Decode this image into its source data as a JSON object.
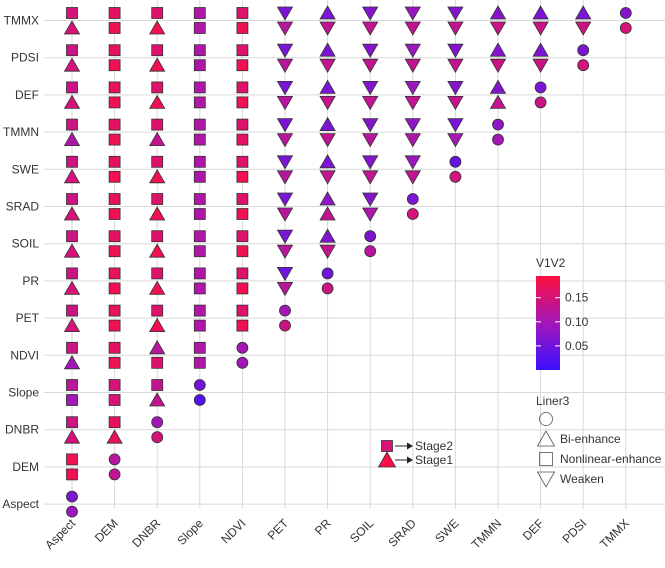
{
  "chart_data": {
    "type": "scatter",
    "x_categories": [
      "Aspect",
      "DEM",
      "DNBR",
      "Slope",
      "NDVI",
      "PET",
      "PR",
      "SOIL",
      "SRAD",
      "SWE",
      "TMMN",
      "DEF",
      "PDSI",
      "TMMX"
    ],
    "y_categories": [
      "TMMX",
      "PDSI",
      "DEF",
      "TMMN",
      "SWE",
      "SRAD",
      "SOIL",
      "PR",
      "PET",
      "NDVI",
      "Slope",
      "DNBR",
      "DEM",
      "Aspect"
    ],
    "stage_labels": [
      "Stage2",
      "Stage1"
    ],
    "cells": [
      {
        "x": "Aspect",
        "y": "TMMX",
        "s2": "square",
        "v2": 0.15,
        "s1": "triangle_up",
        "v1": 0.15
      },
      {
        "x": "DEM",
        "y": "TMMX",
        "s2": "square",
        "v2": 0.17,
        "s1": "square",
        "v1": 0.18
      },
      {
        "x": "DNBR",
        "y": "TMMX",
        "s2": "square",
        "v2": 0.16,
        "s1": "triangle_up",
        "v1": 0.18
      },
      {
        "x": "Slope",
        "y": "TMMX",
        "s2": "square",
        "v2": 0.11,
        "s1": "square",
        "v1": 0.11
      },
      {
        "x": "NDVI",
        "y": "TMMX",
        "s2": "square",
        "v2": 0.16,
        "s1": "square",
        "v1": 0.18
      },
      {
        "x": "PET",
        "y": "TMMX",
        "s2": "triangle_down",
        "v2": 0.06,
        "s1": "triangle_down",
        "v1": 0.12
      },
      {
        "x": "PR",
        "y": "TMMX",
        "s2": "triangle_up",
        "v2": 0.06,
        "s1": "triangle_down",
        "v1": 0.13
      },
      {
        "x": "SOIL",
        "y": "TMMX",
        "s2": "triangle_down",
        "v2": 0.07,
        "s1": "triangle_down",
        "v1": 0.13
      },
      {
        "x": "SRAD",
        "y": "TMMX",
        "s2": "triangle_down",
        "v2": 0.09,
        "s1": "triangle_down",
        "v1": 0.13
      },
      {
        "x": "SWE",
        "y": "TMMX",
        "s2": "triangle_down",
        "v2": 0.07,
        "s1": "triangle_down",
        "v1": 0.13
      },
      {
        "x": "TMMN",
        "y": "TMMX",
        "s2": "triangle_up",
        "v2": 0.07,
        "s1": "triangle_down",
        "v1": 0.14
      },
      {
        "x": "DEF",
        "y": "TMMX",
        "s2": "triangle_up",
        "v2": 0.06,
        "s1": "triangle_down",
        "v1": 0.14
      },
      {
        "x": "PDSI",
        "y": "TMMX",
        "s2": "triangle_up",
        "v2": 0.06,
        "s1": "triangle_down",
        "v1": 0.14
      },
      {
        "x": "TMMX",
        "y": "TMMX",
        "s2": "circle",
        "v2": 0.07,
        "s1": "circle",
        "v1": 0.15
      },
      {
        "x": "Aspect",
        "y": "PDSI",
        "s2": "square",
        "v2": 0.14,
        "s1": "triangle_up",
        "v1": 0.15
      },
      {
        "x": "DEM",
        "y": "PDSI",
        "s2": "square",
        "v2": 0.17,
        "s1": "square",
        "v1": 0.18
      },
      {
        "x": "DNBR",
        "y": "PDSI",
        "s2": "square",
        "v2": 0.16,
        "s1": "triangle_up",
        "v1": 0.18
      },
      {
        "x": "Slope",
        "y": "PDSI",
        "s2": "square",
        "v2": 0.11,
        "s1": "square",
        "v1": 0.11
      },
      {
        "x": "NDVI",
        "y": "PDSI",
        "s2": "square",
        "v2": 0.16,
        "s1": "square",
        "v1": 0.18
      },
      {
        "x": "PET",
        "y": "PDSI",
        "s2": "triangle_down",
        "v2": 0.06,
        "s1": "triangle_down",
        "v1": 0.12
      },
      {
        "x": "PR",
        "y": "PDSI",
        "s2": "triangle_up",
        "v2": 0.06,
        "s1": "triangle_down",
        "v1": 0.13
      },
      {
        "x": "SOIL",
        "y": "PDSI",
        "s2": "triangle_down",
        "v2": 0.07,
        "s1": "triangle_down",
        "v1": 0.13
      },
      {
        "x": "SRAD",
        "y": "PDSI",
        "s2": "triangle_down",
        "v2": 0.09,
        "s1": "triangle_down",
        "v1": 0.13
      },
      {
        "x": "SWE",
        "y": "PDSI",
        "s2": "triangle_down",
        "v2": 0.07,
        "s1": "triangle_down",
        "v1": 0.13
      },
      {
        "x": "TMMN",
        "y": "PDSI",
        "s2": "triangle_up",
        "v2": 0.07,
        "s1": "triangle_down",
        "v1": 0.14
      },
      {
        "x": "DEF",
        "y": "PDSI",
        "s2": "triangle_up",
        "v2": 0.06,
        "s1": "triangle_down",
        "v1": 0.14
      },
      {
        "x": "PDSI",
        "y": "PDSI",
        "s2": "circle",
        "v2": 0.06,
        "s1": "circle",
        "v1": 0.15
      },
      {
        "x": "Aspect",
        "y": "DEF",
        "s2": "square",
        "v2": 0.14,
        "s1": "triangle_up",
        "v1": 0.15
      },
      {
        "x": "DEM",
        "y": "DEF",
        "s2": "square",
        "v2": 0.17,
        "s1": "square",
        "v1": 0.18
      },
      {
        "x": "DNBR",
        "y": "DEF",
        "s2": "square",
        "v2": 0.16,
        "s1": "triangle_up",
        "v1": 0.18
      },
      {
        "x": "Slope",
        "y": "DEF",
        "s2": "square",
        "v2": 0.11,
        "s1": "square",
        "v1": 0.11
      },
      {
        "x": "NDVI",
        "y": "DEF",
        "s2": "square",
        "v2": 0.16,
        "s1": "square",
        "v1": 0.18
      },
      {
        "x": "PET",
        "y": "DEF",
        "s2": "triangle_down",
        "v2": 0.06,
        "s1": "triangle_down",
        "v1": 0.12
      },
      {
        "x": "PR",
        "y": "DEF",
        "s2": "triangle_up",
        "v2": 0.06,
        "s1": "triangle_down",
        "v1": 0.13
      },
      {
        "x": "SOIL",
        "y": "DEF",
        "s2": "triangle_down",
        "v2": 0.07,
        "s1": "triangle_down",
        "v1": 0.13
      },
      {
        "x": "SRAD",
        "y": "DEF",
        "s2": "triangle_down",
        "v2": 0.09,
        "s1": "triangle_down",
        "v1": 0.13
      },
      {
        "x": "SWE",
        "y": "DEF",
        "s2": "triangle_down",
        "v2": 0.07,
        "s1": "triangle_down",
        "v1": 0.13
      },
      {
        "x": "TMMN",
        "y": "DEF",
        "s2": "triangle_up",
        "v2": 0.07,
        "s1": "triangle_up",
        "v1": 0.13
      },
      {
        "x": "DEF",
        "y": "DEF",
        "s2": "circle",
        "v2": 0.06,
        "s1": "circle",
        "v1": 0.14
      },
      {
        "x": "Aspect",
        "y": "TMMN",
        "s2": "square",
        "v2": 0.14,
        "s1": "triangle_up",
        "v1": 0.11
      },
      {
        "x": "DEM",
        "y": "TMMN",
        "s2": "square",
        "v2": 0.17,
        "s1": "square",
        "v1": 0.18
      },
      {
        "x": "DNBR",
        "y": "TMMN",
        "s2": "square",
        "v2": 0.16,
        "s1": "triangle_up",
        "v1": 0.13
      },
      {
        "x": "Slope",
        "y": "TMMN",
        "s2": "square",
        "v2": 0.11,
        "s1": "square",
        "v1": 0.11
      },
      {
        "x": "NDVI",
        "y": "TMMN",
        "s2": "square",
        "v2": 0.16,
        "s1": "square",
        "v1": 0.17
      },
      {
        "x": "PET",
        "y": "TMMN",
        "s2": "triangle_down",
        "v2": 0.06,
        "s1": "triangle_down",
        "v1": 0.12
      },
      {
        "x": "PR",
        "y": "TMMN",
        "s2": "triangle_up",
        "v2": 0.06,
        "s1": "triangle_down",
        "v1": 0.13
      },
      {
        "x": "SOIL",
        "y": "TMMN",
        "s2": "triangle_down",
        "v2": 0.07,
        "s1": "triangle_down",
        "v1": 0.12
      },
      {
        "x": "SRAD",
        "y": "TMMN",
        "s2": "triangle_down",
        "v2": 0.08,
        "s1": "triangle_down",
        "v1": 0.11
      },
      {
        "x": "SWE",
        "y": "TMMN",
        "s2": "triangle_down",
        "v2": 0.06,
        "s1": "triangle_down",
        "v1": 0.1
      },
      {
        "x": "TMMN",
        "y": "TMMN",
        "s2": "circle",
        "v2": 0.08,
        "s1": "circle",
        "v1": 0.1
      },
      {
        "x": "Aspect",
        "y": "SWE",
        "s2": "square",
        "v2": 0.14,
        "s1": "triangle_up",
        "v1": 0.15
      },
      {
        "x": "DEM",
        "y": "SWE",
        "s2": "square",
        "v2": 0.17,
        "s1": "square",
        "v1": 0.18
      },
      {
        "x": "DNBR",
        "y": "SWE",
        "s2": "square",
        "v2": 0.16,
        "s1": "triangle_up",
        "v1": 0.18
      },
      {
        "x": "Slope",
        "y": "SWE",
        "s2": "square",
        "v2": 0.11,
        "s1": "square",
        "v1": 0.11
      },
      {
        "x": "NDVI",
        "y": "SWE",
        "s2": "square",
        "v2": 0.16,
        "s1": "square",
        "v1": 0.18
      },
      {
        "x": "PET",
        "y": "SWE",
        "s2": "triangle_down",
        "v2": 0.06,
        "s1": "triangle_down",
        "v1": 0.12
      },
      {
        "x": "PR",
        "y": "SWE",
        "s2": "triangle_up",
        "v2": 0.06,
        "s1": "triangle_down",
        "v1": 0.13
      },
      {
        "x": "SOIL",
        "y": "SWE",
        "s2": "triangle_down",
        "v2": 0.07,
        "s1": "triangle_down",
        "v1": 0.13
      },
      {
        "x": "SRAD",
        "y": "SWE",
        "s2": "triangle_down",
        "v2": 0.09,
        "s1": "triangle_down",
        "v1": 0.13
      },
      {
        "x": "SWE",
        "y": "SWE",
        "s2": "circle",
        "v2": 0.04,
        "s1": "circle",
        "v1": 0.15
      },
      {
        "x": "Aspect",
        "y": "SRAD",
        "s2": "square",
        "v2": 0.14,
        "s1": "triangle_up",
        "v1": 0.15
      },
      {
        "x": "DEM",
        "y": "SRAD",
        "s2": "square",
        "v2": 0.17,
        "s1": "square",
        "v1": 0.18
      },
      {
        "x": "DNBR",
        "y": "SRAD",
        "s2": "square",
        "v2": 0.16,
        "s1": "triangle_up",
        "v1": 0.18
      },
      {
        "x": "Slope",
        "y": "SRAD",
        "s2": "square",
        "v2": 0.11,
        "s1": "square",
        "v1": 0.11
      },
      {
        "x": "NDVI",
        "y": "SRAD",
        "s2": "square",
        "v2": 0.16,
        "s1": "square",
        "v1": 0.18
      },
      {
        "x": "PET",
        "y": "SRAD",
        "s2": "triangle_down",
        "v2": 0.06,
        "s1": "triangle_down",
        "v1": 0.12
      },
      {
        "x": "PR",
        "y": "SRAD",
        "s2": "triangle_up",
        "v2": 0.08,
        "s1": "triangle_up",
        "v1": 0.13
      },
      {
        "x": "SOIL",
        "y": "SRAD",
        "s2": "triangle_down",
        "v2": 0.07,
        "s1": "triangle_down",
        "v1": 0.11
      },
      {
        "x": "SRAD",
        "y": "SRAD",
        "s2": "circle",
        "v2": 0.06,
        "s1": "circle",
        "v1": 0.15
      },
      {
        "x": "Aspect",
        "y": "SOIL",
        "s2": "square",
        "v2": 0.14,
        "s1": "triangle_up",
        "v1": 0.15
      },
      {
        "x": "DEM",
        "y": "SOIL",
        "s2": "square",
        "v2": 0.17,
        "s1": "square",
        "v1": 0.18
      },
      {
        "x": "DNBR",
        "y": "SOIL",
        "s2": "square",
        "v2": 0.16,
        "s1": "triangle_up",
        "v1": 0.18
      },
      {
        "x": "Slope",
        "y": "SOIL",
        "s2": "square",
        "v2": 0.11,
        "s1": "square",
        "v1": 0.11
      },
      {
        "x": "NDVI",
        "y": "SOIL",
        "s2": "square",
        "v2": 0.16,
        "s1": "square",
        "v1": 0.18
      },
      {
        "x": "PET",
        "y": "SOIL",
        "s2": "triangle_down",
        "v2": 0.06,
        "s1": "triangle_down",
        "v1": 0.12
      },
      {
        "x": "PR",
        "y": "SOIL",
        "s2": "triangle_up",
        "v2": 0.07,
        "s1": "triangle_down",
        "v1": 0.13
      },
      {
        "x": "SOIL",
        "y": "SOIL",
        "s2": "circle",
        "v2": 0.06,
        "s1": "circle",
        "v1": 0.12
      },
      {
        "x": "Aspect",
        "y": "PR",
        "s2": "square",
        "v2": 0.14,
        "s1": "triangle_up",
        "v1": 0.15
      },
      {
        "x": "DEM",
        "y": "PR",
        "s2": "square",
        "v2": 0.17,
        "s1": "square",
        "v1": 0.18
      },
      {
        "x": "DNBR",
        "y": "PR",
        "s2": "square",
        "v2": 0.16,
        "s1": "triangle_up",
        "v1": 0.18
      },
      {
        "x": "Slope",
        "y": "PR",
        "s2": "square",
        "v2": 0.11,
        "s1": "square",
        "v1": 0.11
      },
      {
        "x": "NDVI",
        "y": "PR",
        "s2": "square",
        "v2": 0.16,
        "s1": "square",
        "v1": 0.18
      },
      {
        "x": "PET",
        "y": "PR",
        "s2": "triangle_down",
        "v2": 0.05,
        "s1": "triangle_down",
        "v1": 0.12
      },
      {
        "x": "PR",
        "y": "PR",
        "s2": "circle",
        "v2": 0.05,
        "s1": "circle",
        "v1": 0.14
      },
      {
        "x": "Aspect",
        "y": "PET",
        "s2": "square",
        "v2": 0.14,
        "s1": "triangle_up",
        "v1": 0.15
      },
      {
        "x": "DEM",
        "y": "PET",
        "s2": "square",
        "v2": 0.17,
        "s1": "square",
        "v1": 0.18
      },
      {
        "x": "DNBR",
        "y": "PET",
        "s2": "square",
        "v2": 0.16,
        "s1": "triangle_up",
        "v1": 0.18
      },
      {
        "x": "Slope",
        "y": "PET",
        "s2": "square",
        "v2": 0.11,
        "s1": "square",
        "v1": 0.11
      },
      {
        "x": "NDVI",
        "y": "PET",
        "s2": "square",
        "v2": 0.16,
        "s1": "square",
        "v1": 0.18
      },
      {
        "x": "PET",
        "y": "PET",
        "s2": "circle",
        "v2": 0.1,
        "s1": "circle",
        "v1": 0.14
      },
      {
        "x": "Aspect",
        "y": "NDVI",
        "s2": "square",
        "v2": 0.14,
        "s1": "triangle_up",
        "v1": 0.1
      },
      {
        "x": "DEM",
        "y": "NDVI",
        "s2": "square",
        "v2": 0.17,
        "s1": "square",
        "v1": 0.18
      },
      {
        "x": "DNBR",
        "y": "NDVI",
        "s2": "triangle_up",
        "v2": 0.12,
        "s1": "square",
        "v1": 0.16
      },
      {
        "x": "Slope",
        "y": "NDVI",
        "s2": "square",
        "v2": 0.11,
        "s1": "square",
        "v1": 0.11
      },
      {
        "x": "NDVI",
        "y": "NDVI",
        "s2": "circle",
        "v2": 0.1,
        "s1": "circle",
        "v1": 0.1
      },
      {
        "x": "Aspect",
        "y": "Slope",
        "s2": "square",
        "v2": 0.12,
        "s1": "square",
        "v1": 0.1
      },
      {
        "x": "DEM",
        "y": "Slope",
        "s2": "square",
        "v2": 0.15,
        "s1": "square",
        "v1": 0.15
      },
      {
        "x": "DNBR",
        "y": "Slope",
        "s2": "square",
        "v2": 0.13,
        "s1": "triangle_up",
        "v1": 0.13
      },
      {
        "x": "Slope",
        "y": "Slope",
        "s2": "circle",
        "v2": 0.05,
        "s1": "circle",
        "v1": 0.02
      },
      {
        "x": "Aspect",
        "y": "DNBR",
        "s2": "square",
        "v2": 0.14,
        "s1": "triangle_up",
        "v1": 0.15
      },
      {
        "x": "DEM",
        "y": "DNBR",
        "s2": "square",
        "v2": 0.17,
        "s1": "triangle_up",
        "v1": 0.17
      },
      {
        "x": "DNBR",
        "y": "DNBR",
        "s2": "circle",
        "v2": 0.1,
        "s1": "circle",
        "v1": 0.15
      },
      {
        "x": "Aspect",
        "y": "DEM",
        "s2": "square",
        "v2": 0.18,
        "s1": "square",
        "v1": 0.18
      },
      {
        "x": "DEM",
        "y": "DEM",
        "s2": "circle",
        "v2": 0.12,
        "s1": "circle",
        "v1": 0.13
      },
      {
        "x": "Aspect",
        "y": "Aspect",
        "s2": "circle",
        "v2": 0.06,
        "s1": "circle",
        "v1": 0.09
      }
    ],
    "stage_legend": {
      "stage2": {
        "shape": "square",
        "value": 0.15
      },
      "stage1": {
        "shape": "triangle_up",
        "value": 0.19
      }
    },
    "colorbar": {
      "title": "V1V2",
      "ticks": [
        "0.15",
        "0.10",
        "0.05"
      ],
      "tick_values": [
        0.15,
        0.1,
        0.05
      ],
      "range": [
        0.0,
        0.195
      ],
      "low_color": "#3a10ff",
      "mid_color": "#a316b9",
      "high_color": "#ff1040"
    },
    "shape_legend": {
      "title": "Liner3",
      "items": [
        {
          "shape": "circle",
          "label": ""
        },
        {
          "shape": "triangle_up",
          "label": "Bi-enhance"
        },
        {
          "shape": "square",
          "label": "Nonlinear-enhance"
        },
        {
          "shape": "triangle_down",
          "label": "Weaken"
        }
      ]
    },
    "grid": true
  }
}
